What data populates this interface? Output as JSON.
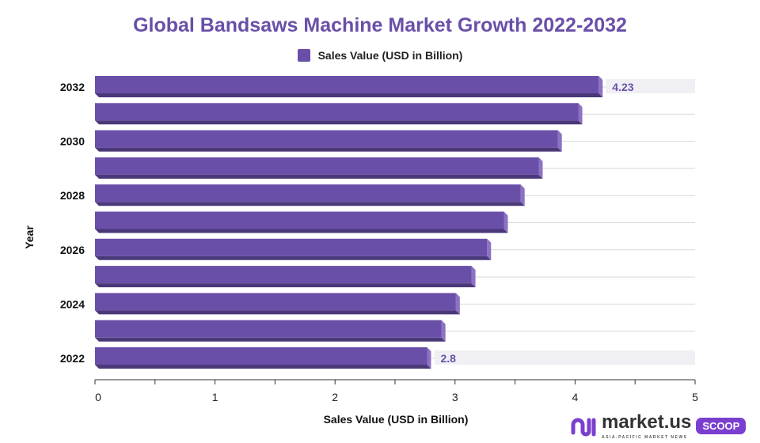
{
  "chart_data": {
    "type": "bar",
    "orientation": "horizontal",
    "title": "Global Bandsaws Machine Market Growth 2022-2032",
    "xlabel": "Sales Value (USD in Billion)",
    "ylabel": "Year",
    "categories": [
      "2022",
      "2023",
      "2024",
      "2025",
      "2026",
      "2027",
      "2028",
      "2029",
      "2030",
      "2031",
      "2032"
    ],
    "category_tick_labels": [
      "2022",
      "2024",
      "2026",
      "2028",
      "2030",
      "2032"
    ],
    "series": [
      {
        "name": "Sales Value (USD in Billion)",
        "values": [
          2.8,
          2.92,
          3.04,
          3.17,
          3.3,
          3.44,
          3.58,
          3.73,
          3.89,
          4.06,
          4.23
        ]
      }
    ],
    "data_labels": {
      "2022": "2.8",
      "2032": "4.23"
    },
    "xlim": [
      0,
      5
    ],
    "xticks": [
      "0",
      "1",
      "2",
      "3",
      "4",
      "5"
    ],
    "grid": true,
    "legend_position": "top",
    "colors": {
      "bar": "#6a4fa8",
      "bar_bottom": "#4a3878",
      "bar_side": "#8c72c4",
      "label": "#6a4fa8"
    }
  },
  "branding": {
    "logo_text": "market.us",
    "logo_tagline": "ASIA-PACIFIC MARKET NEWS",
    "badge": "SCOOP"
  }
}
